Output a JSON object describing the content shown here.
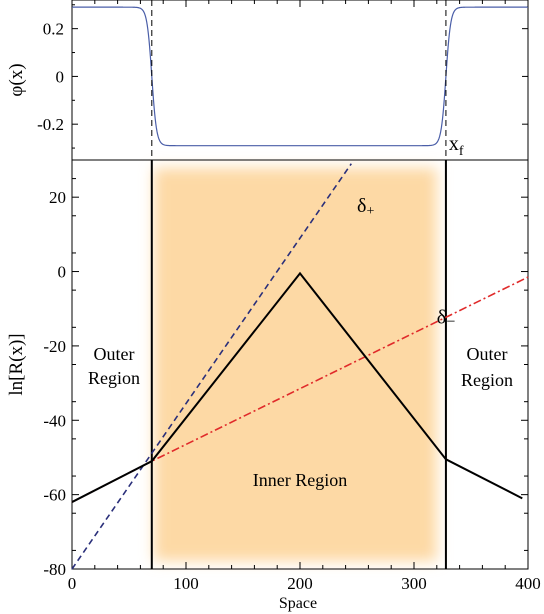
{
  "chart_data": [
    {
      "type": "line",
      "ylabel": "φ(x)",
      "xlim": [
        0,
        400
      ],
      "ylim": [
        -0.35,
        0.32
      ],
      "yticks": [
        {
          "value": 0.2,
          "label": "0.2"
        },
        {
          "value": 0,
          "label": "0"
        },
        {
          "value": -0.2,
          "label": "-0.2"
        }
      ],
      "series": [
        {
          "color": "#4a5ea8",
          "plateau_outer": 0.29,
          "plateau_inner": -0.29,
          "transitions": [
            70,
            328
          ]
        }
      ],
      "vlines": [
        70,
        328
      ],
      "annotations": [
        {
          "label": "x",
          "sub": "f",
          "x": 328
        }
      ]
    },
    {
      "type": "line",
      "xlabel": "Space",
      "ylabel": "ln[R(x)]",
      "xlim": [
        0,
        400
      ],
      "ylim": [
        -80,
        30
      ],
      "xticks": [
        0,
        100,
        200,
        300,
        400
      ],
      "yticks": [
        20,
        0,
        -20,
        -40,
        -60,
        -80
      ],
      "shaded_region": {
        "x": [
          72,
          320
        ],
        "color": "#fdd9a5"
      },
      "vlines": [
        70,
        328
      ],
      "series": [
        {
          "name": "ln R",
          "color": "#000000",
          "style": "solid",
          "points": [
            [
              0,
              -62
            ],
            [
              70,
              -51
            ],
            [
              200,
              -0.5
            ],
            [
              328,
              -50.5
            ],
            [
              395,
              -61
            ]
          ]
        },
        {
          "name": "δ+",
          "color": "#2a2f7a",
          "style": "dashed",
          "points": [
            [
              0,
              -80
            ],
            [
              245,
              29
            ]
          ]
        },
        {
          "name": "δ-",
          "color": "#e02a2a",
          "style": "dashdot",
          "points": [
            [
              0,
              -62
            ],
            [
              70,
              -51
            ],
            [
              400,
              -1.5
            ]
          ]
        }
      ],
      "labels": {
        "delta_plus": {
          "base": "δ",
          "sub": "+",
          "x": 250,
          "y": 16
        },
        "delta_minus": {
          "base": "δ",
          "sub": "−",
          "x": 320,
          "y": -14
        },
        "outer_left": {
          "line1": "Outer",
          "line2": "Region"
        },
        "outer_right": {
          "line1": "Outer",
          "line2": "Region"
        },
        "inner": "Inner Region"
      }
    }
  ]
}
